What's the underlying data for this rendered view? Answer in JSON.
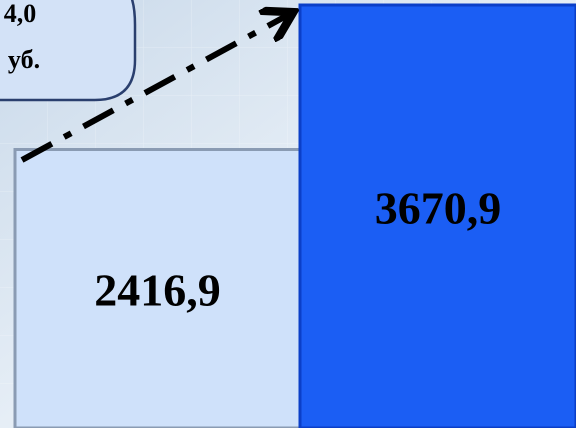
{
  "chart_data": {
    "type": "bar",
    "values": [
      2416.9,
      3670.9
    ],
    "value_labels": [
      "2416,9",
      "3670,9"
    ],
    "colors": [
      "#cfe1fa",
      "#1b5ef4"
    ],
    "callout": [
      "4,0",
      "уб."
    ]
  }
}
